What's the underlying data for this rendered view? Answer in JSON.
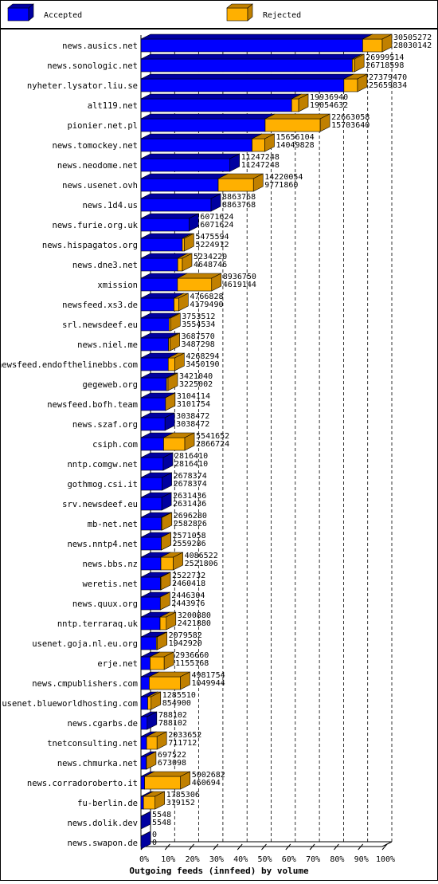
{
  "chart_data": {
    "type": "bar3d",
    "title": "Outgoing feeds (innfeed) by volume",
    "legend": [
      {
        "name": "Accepted",
        "color": "#0000ff"
      },
      {
        "name": "Rejected",
        "color": "#ffb000"
      }
    ],
    "categories": [
      "news.ausics.net",
      "news.sonologic.net",
      "nyheter.lysator.liu.se",
      "alt119.net",
      "pionier.net.pl",
      "news.tomockey.net",
      "news.neodome.net",
      "news.usenet.ovh",
      "news.1d4.us",
      "news.furie.org.uk",
      "news.hispagatos.org",
      "news.dne3.net",
      "xmission",
      "newsfeed.xs3.de",
      "srl.newsdeef.eu",
      "news.niel.me",
      "newsfeed.endofthelinebbs.com",
      "gegeweb.org",
      "newsfeed.bofh.team",
      "news.szaf.org",
      "csiph.com",
      "nntp.comgw.net",
      "gothmog.csi.it",
      "srv.newsdeef.eu",
      "mb-net.net",
      "news.nntp4.net",
      "news.bbs.nz",
      "weretis.net",
      "news.quux.org",
      "nntp.terraraq.uk",
      "usenet.goja.nl.eu.org",
      "erje.net",
      "news.cmpublishers.com",
      "usenet.blueworldhosting.com",
      "news.cgarbs.de",
      "tnetconsulting.net",
      "news.chmurka.net",
      "news.corradoroberto.it",
      "fu-berlin.de",
      "news.dolik.dev",
      "news.swapon.de"
    ],
    "offered": [
      30505272,
      26999514,
      27379470,
      19936940,
      22663058,
      15656104,
      11247248,
      14220054,
      8863768,
      6071624,
      5475594,
      5234220,
      8936750,
      4766828,
      3753512,
      3687570,
      4268294,
      3421040,
      3104114,
      3038472,
      5541652,
      2816410,
      2678374,
      2631436,
      2696280,
      2571058,
      4086522,
      2522732,
      2446304,
      3200880,
      2079582,
      2936660,
      4981754,
      1285510,
      788102,
      2033652,
      697522,
      5002682,
      1785306,
      5548,
      0
    ],
    "accepted": [
      28030142,
      26718598,
      25659834,
      19054632,
      15703640,
      14049828,
      11247248,
      9771860,
      8863768,
      6071624,
      5224912,
      4648746,
      4619144,
      4179490,
      3554534,
      3487298,
      3450190,
      3225002,
      3101754,
      3038472,
      2866724,
      2816410,
      2678374,
      2631436,
      2582826,
      2559286,
      2521806,
      2460418,
      2443976,
      2421880,
      1942920,
      1155168,
      1049944,
      854900,
      788102,
      711712,
      673098,
      460694,
      319152,
      5548,
      0
    ],
    "xlim": [
      0,
      30505272
    ],
    "xticks": [
      {
        "value": 0,
        "label": "0%"
      },
      {
        "value": 3050527.2,
        "label": "10%"
      },
      {
        "value": 6101054.4,
        "label": "20%"
      },
      {
        "value": 9151581.6,
        "label": "30%"
      },
      {
        "value": 12202108.8,
        "label": "40%"
      },
      {
        "value": 15252636,
        "label": "50%"
      },
      {
        "value": 18303163.2,
        "label": "60%"
      },
      {
        "value": 21353690.4,
        "label": "70%"
      },
      {
        "value": 24404217.6,
        "label": "80%"
      },
      {
        "value": 27454744.8,
        "label": "90%"
      },
      {
        "value": 30505272,
        "label": "100%"
      }
    ],
    "grid": true
  }
}
